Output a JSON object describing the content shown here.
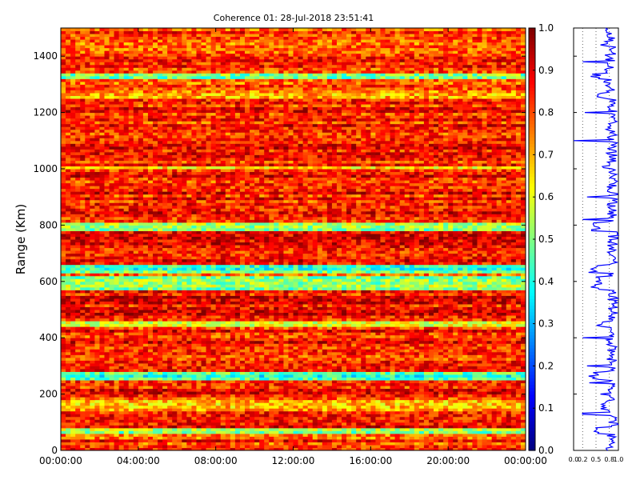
{
  "chart_data": {
    "type": "heatmap",
    "title": "Coherence 01: 28-Jul-2018 23:51:41",
    "ylabel": "Range (Km)",
    "xlabel": "",
    "x_tick_labels": [
      "00:00:00",
      "04:00:00",
      "08:00:00",
      "12:00:00",
      "16:00:00",
      "20:00:00",
      "00:00:00"
    ],
    "y_tick_labels": [
      "0",
      "200",
      "400",
      "600",
      "800",
      "1000",
      "1200",
      "1400"
    ],
    "x_range_hours": [
      0,
      24
    ],
    "y_range_km": [
      0,
      1500
    ],
    "colormap": "jet",
    "colorbar": {
      "range": [
        0,
        1
      ],
      "tick_labels": [
        "0.0",
        "0.1",
        "0.2",
        "0.3",
        "0.4",
        "0.5",
        "0.6",
        "0.7",
        "0.8",
        "0.9",
        "1.0"
      ]
    },
    "profile_panel": {
      "type": "line",
      "x_tick_labels": [
        "0.0",
        "0.2",
        "0.5",
        "0.8",
        "1.0"
      ],
      "x_range": [
        0,
        1
      ],
      "series_color": "#0000ff",
      "description_rows": [
        {
          "range_km": 1480,
          "coherence": 0.85
        },
        {
          "range_km": 1440,
          "coherence": 0.6
        },
        {
          "range_km": 1380,
          "coherence": 0.2
        },
        {
          "range_km": 1340,
          "coherence": 0.75
        },
        {
          "range_km": 1300,
          "coherence": 0.8
        },
        {
          "range_km": 1200,
          "coherence": 0.25
        },
        {
          "range_km": 1100,
          "coherence": 0.0
        },
        {
          "range_km": 1000,
          "coherence": 0.85
        },
        {
          "range_km": 900,
          "coherence": 0.3
        },
        {
          "range_km": 820,
          "coherence": 0.2
        },
        {
          "range_km": 800,
          "coherence": 0.45
        },
        {
          "range_km": 640,
          "coherence": 0.45
        },
        {
          "range_km": 600,
          "coherence": 0.5
        },
        {
          "range_km": 500,
          "coherence": 0.85
        },
        {
          "range_km": 400,
          "coherence": 0.2
        },
        {
          "range_km": 300,
          "coherence": 0.3
        },
        {
          "range_km": 240,
          "coherence": 0.35
        },
        {
          "range_km": 200,
          "coherence": 0.6
        },
        {
          "range_km": 130,
          "coherence": 0.2
        },
        {
          "range_km": 80,
          "coherence": 0.5
        },
        {
          "range_km": 20,
          "coherence": 0.8
        }
      ]
    },
    "range_band_coherence": [
      {
        "from_km": 0,
        "to_km": 60,
        "value": 0.82
      },
      {
        "from_km": 60,
        "to_km": 80,
        "value": 0.55
      },
      {
        "from_km": 80,
        "to_km": 140,
        "value": 0.9
      },
      {
        "from_km": 140,
        "to_km": 180,
        "value": 0.7
      },
      {
        "from_km": 180,
        "to_km": 250,
        "value": 0.85
      },
      {
        "from_km": 250,
        "to_km": 280,
        "value": 0.45
      },
      {
        "from_km": 280,
        "to_km": 440,
        "value": 0.85
      },
      {
        "from_km": 440,
        "to_km": 460,
        "value": 0.55
      },
      {
        "from_km": 460,
        "to_km": 570,
        "value": 0.88
      },
      {
        "from_km": 570,
        "to_km": 620,
        "value": 0.5
      },
      {
        "from_km": 620,
        "to_km": 630,
        "value": 0.8
      },
      {
        "from_km": 630,
        "to_km": 660,
        "value": 0.45
      },
      {
        "from_km": 660,
        "to_km": 780,
        "value": 0.88
      },
      {
        "from_km": 780,
        "to_km": 810,
        "value": 0.5
      },
      {
        "from_km": 810,
        "to_km": 1000,
        "value": 0.86
      },
      {
        "from_km": 1000,
        "to_km": 1010,
        "value": 0.65
      },
      {
        "from_km": 1010,
        "to_km": 1250,
        "value": 0.85
      },
      {
        "from_km": 1250,
        "to_km": 1270,
        "value": 0.65
      },
      {
        "from_km": 1270,
        "to_km": 1320,
        "value": 0.8
      },
      {
        "from_km": 1320,
        "to_km": 1340,
        "value": 0.5
      },
      {
        "from_km": 1340,
        "to_km": 1500,
        "value": 0.82
      }
    ]
  }
}
